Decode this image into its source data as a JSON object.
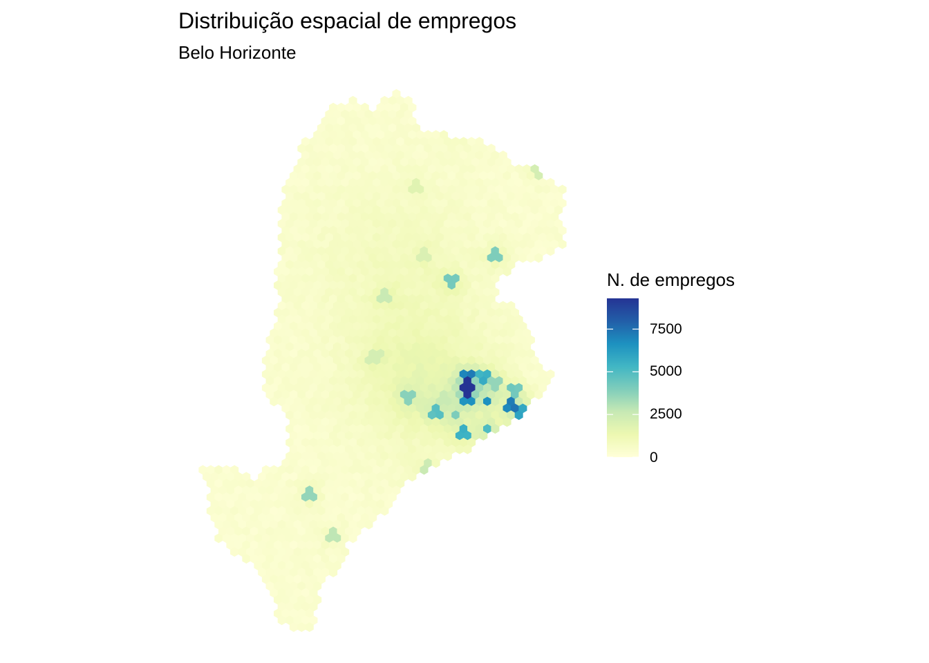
{
  "title": "Distribuição espacial de empregos",
  "subtitle": "Belo Horizonte",
  "legend": {
    "title": "N. de empregos",
    "ticks": [
      {
        "value": 0,
        "label": "0"
      },
      {
        "value": 2500,
        "label": "2500"
      },
      {
        "value": 5000,
        "label": "5000"
      },
      {
        "value": 7500,
        "label": "7500"
      }
    ],
    "range": [
      0,
      9300
    ],
    "palette": [
      "#ffffd9",
      "#edf8b1",
      "#c7e9b4",
      "#7fcdbb",
      "#41b6c4",
      "#1d91c0",
      "#225ea8",
      "#253494"
    ]
  },
  "chart_data": {
    "type": "heatmap",
    "geometry": "hexagonal grid",
    "variable": "N. de empregos",
    "background_value": 150,
    "hotspots": [
      {
        "lon": -43.938,
        "lat": -19.923,
        "value": 9300
      },
      {
        "lon": -43.938,
        "lat": -19.918,
        "value": 6800
      },
      {
        "lon": -43.93,
        "lat": -19.918,
        "value": 5200
      },
      {
        "lon": -43.938,
        "lat": -19.928,
        "value": 6200
      },
      {
        "lon": -43.929,
        "lat": -19.93,
        "value": 6500
      },
      {
        "lon": -43.916,
        "lat": -19.933,
        "value": 6300
      },
      {
        "lon": -43.912,
        "lat": -19.934,
        "value": 5600
      },
      {
        "lon": -43.925,
        "lat": -19.948,
        "value": 6300
      },
      {
        "lon": -43.929,
        "lat": -19.944,
        "value": 5000
      },
      {
        "lon": -43.94,
        "lat": -19.947,
        "value": 5400
      },
      {
        "lon": -43.954,
        "lat": -19.935,
        "value": 4600
      },
      {
        "lon": -43.944,
        "lat": -19.937,
        "value": 4000
      },
      {
        "lon": -43.966,
        "lat": -19.928,
        "value": 3800
      },
      {
        "lon": -43.916,
        "lat": -19.925,
        "value": 4200
      },
      {
        "lon": -43.925,
        "lat": -19.921,
        "value": 3600
      },
      {
        "lon": -43.914,
        "lat": -19.942,
        "value": 3300
      },
      {
        "lon": -43.949,
        "lat": -19.928,
        "value": 2600
      },
      {
        "lon": -43.946,
        "lat": -19.869,
        "value": 4200
      },
      {
        "lon": -43.924,
        "lat": -19.855,
        "value": 4000
      },
      {
        "lon": -43.945,
        "lat": -19.79,
        "value": 3500
      },
      {
        "lon": -43.946,
        "lat": -19.985,
        "value": 4300
      },
      {
        "lon": -44.014,
        "lat": -19.979,
        "value": 3600
      },
      {
        "lon": -44.004,
        "lat": -20.0,
        "value": 2800
      },
      {
        "lon": -43.977,
        "lat": -19.876,
        "value": 2600
      },
      {
        "lon": -43.904,
        "lat": -19.811,
        "value": 2200
      },
      {
        "lon": -43.956,
        "lat": -19.965,
        "value": 2400
      },
      {
        "lon": -43.96,
        "lat": -19.972,
        "value": 2200
      },
      {
        "lon": -43.983,
        "lat": -19.907,
        "value": 2200
      },
      {
        "lon": -43.958,
        "lat": -19.855,
        "value": 2000
      },
      {
        "lon": -43.963,
        "lat": -19.818,
        "value": 1800
      }
    ]
  }
}
